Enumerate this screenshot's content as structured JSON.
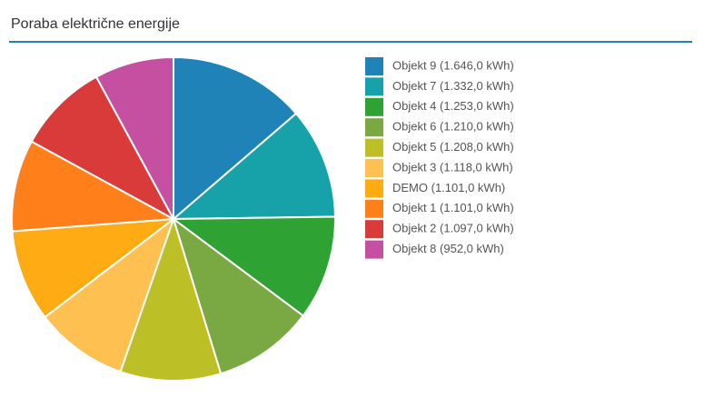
{
  "chart_data": {
    "type": "pie",
    "title": "Poraba električne energije",
    "categories": [
      "Objekt 9 (1.646,0 kWh)",
      "Objekt 7 (1.332,0 kWh)",
      "Objekt 4 (1.253,0 kWh)",
      "Objekt 6 (1.210,0 kWh)",
      "Objekt 5 (1.208,0 kWh)",
      "Objekt 3 (1.118,0 kWh)",
      "DEMO (1.101,0 kWh)",
      "Objekt 1 (1.101,0 kWh)",
      "Objekt 2 (1.097,0 kWh)",
      "Objekt 8 (952,0 kWh)"
    ],
    "values": [
      1646.0,
      1332.0,
      1253.0,
      1210.0,
      1208.0,
      1118.0,
      1101.0,
      1101.0,
      1097.0,
      952.0
    ],
    "colors": [
      "#1f83b7",
      "#17a2a9",
      "#2ea334",
      "#7aa843",
      "#bdbf26",
      "#ffc052",
      "#ffab14",
      "#ff7f1a",
      "#d93b3b",
      "#c550a2"
    ],
    "legend": "right"
  }
}
